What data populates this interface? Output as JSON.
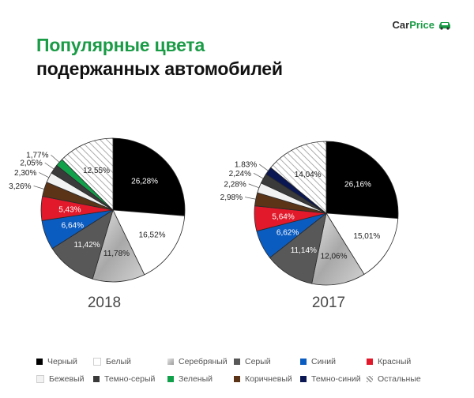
{
  "logo": {
    "text_part1": "Car",
    "text_part2": "Price",
    "icon": "car-icon",
    "accent_color": "#1a9b46"
  },
  "title": {
    "line1": "Популярные цвета",
    "line2": "подержанных автомобилей"
  },
  "colors": {
    "black": "#000000",
    "white": "#ffffff",
    "silver": "#b9b9b9",
    "gray": "#585858",
    "blue": "#0b5cc1",
    "red": "#e1192a",
    "beige": "#f2f2f2",
    "darkgray": "#3a3a3a",
    "green": "#11a14a",
    "brown": "#5b3417",
    "navy": "#0b1752",
    "other": "#ffffff"
  },
  "legend": [
    {
      "key": "black",
      "label": "Черный"
    },
    {
      "key": "white",
      "label": "Белый"
    },
    {
      "key": "silver",
      "label": "Серебряный"
    },
    {
      "key": "gray",
      "label": "Серый"
    },
    {
      "key": "blue",
      "label": "Синий"
    },
    {
      "key": "red",
      "label": "Красный"
    },
    {
      "key": "beige",
      "label": "Бежевый"
    },
    {
      "key": "darkgray",
      "label": "Темно-серый"
    },
    {
      "key": "green",
      "label": "Зеленый"
    },
    {
      "key": "brown",
      "label": "Коричневый"
    },
    {
      "key": "navy",
      "label": "Темно-синий"
    },
    {
      "key": "other",
      "label": "Остальные"
    }
  ],
  "chart_data": [
    {
      "type": "pie",
      "title": "2018",
      "slices": [
        {
          "key": "black",
          "value": 26.28,
          "label": "26,28%"
        },
        {
          "key": "white",
          "value": 16.52,
          "label": "16,52%"
        },
        {
          "key": "silver",
          "value": 11.78,
          "label": "11,78%"
        },
        {
          "key": "gray",
          "value": 11.42,
          "label": "11,42%"
        },
        {
          "key": "blue",
          "value": 6.64,
          "label": "6,64%"
        },
        {
          "key": "red",
          "value": 5.43,
          "label": "5,43%"
        },
        {
          "key": "brown",
          "value": 3.26,
          "label": "3,26%"
        },
        {
          "key": "beige",
          "value": 2.3,
          "label": "2,30%"
        },
        {
          "key": "darkgray",
          "value": 2.05,
          "label": "2,05%"
        },
        {
          "key": "green",
          "value": 1.77,
          "label": "1,77%"
        },
        {
          "key": "other",
          "value": 12.55,
          "label": "12,55%"
        }
      ]
    },
    {
      "type": "pie",
      "title": "2017",
      "slices": [
        {
          "key": "black",
          "value": 26.16,
          "label": "26,16%"
        },
        {
          "key": "white",
          "value": 15.01,
          "label": "15,01%"
        },
        {
          "key": "silver",
          "value": 12.06,
          "label": "12,06%"
        },
        {
          "key": "gray",
          "value": 11.14,
          "label": "11,14%"
        },
        {
          "key": "blue",
          "value": 6.62,
          "label": "6,62%"
        },
        {
          "key": "red",
          "value": 5.64,
          "label": "5,64%"
        },
        {
          "key": "brown",
          "value": 2.98,
          "label": "2,98%"
        },
        {
          "key": "beige",
          "value": 2.28,
          "label": "2,28%"
        },
        {
          "key": "darkgray",
          "value": 2.24,
          "label": "2,24%"
        },
        {
          "key": "navy",
          "value": 1.83,
          "label": "1.83%"
        },
        {
          "key": "other",
          "value": 14.04,
          "label": "14,04%"
        }
      ]
    }
  ]
}
